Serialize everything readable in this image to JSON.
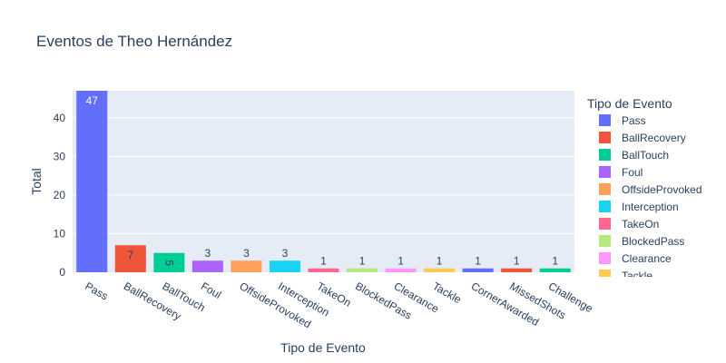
{
  "chart_data": {
    "type": "bar",
    "title": "Eventos de Theo Hernández",
    "xlabel": "Tipo de Evento",
    "ylabel": "Total",
    "ylim": [
      0,
      47
    ],
    "yticks": [
      0,
      10,
      20,
      30,
      40
    ],
    "grid": true,
    "legend_title": "Tipo de Evento",
    "legend_position": "right",
    "categories": [
      "Pass",
      "BallRecovery",
      "BallTouch",
      "Foul",
      "OffsideProvoked",
      "Interception",
      "TakeOn",
      "BlockedPass",
      "Clearance",
      "Tackle",
      "CornerAwarded",
      "MissedShots",
      "Challenge"
    ],
    "values": [
      47,
      7,
      5,
      3,
      3,
      3,
      1,
      1,
      1,
      1,
      1,
      1,
      1
    ],
    "colors": [
      "#636efa",
      "#EF553B",
      "#00cc96",
      "#ab63fa",
      "#FFA15A",
      "#19d3f3",
      "#FF6692",
      "#B6E880",
      "#FF97FF",
      "#FECB52",
      "#636efa",
      "#EF553B",
      "#00cc96"
    ],
    "legend_entries": [
      "Pass",
      "BallRecovery",
      "BallTouch",
      "Foul",
      "OffsideProvoked",
      "Interception",
      "TakeOn",
      "BlockedPass",
      "Clearance",
      "Tackle"
    ]
  }
}
